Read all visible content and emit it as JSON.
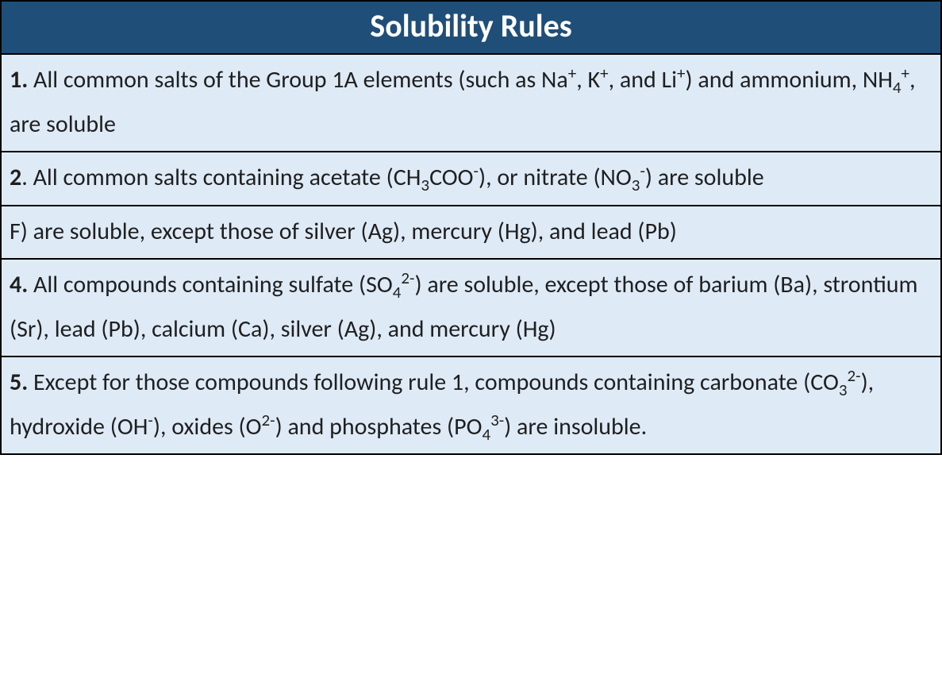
{
  "table": {
    "title": "Solubility Rules",
    "header_bg": "#1f4e79",
    "header_fg": "#ffffff",
    "row_bg": "#deebf7",
    "row_fg": "#1f1f1f",
    "border_color": "#000000",
    "title_fontsize": 40,
    "row_fontsize": 30,
    "rules": [
      {
        "num": "1.",
        "html": " All common salts of the Group 1A elements (such as Na<sup>+</sup>, K<sup>+</sup>, and Li<sup>+</sup>)  and ammonium, NH<sub>4</sub><sup>+</sup>, are soluble"
      },
      {
        "num": "2",
        "html": ". All common salts containing acetate (CH<sub>3</sub>COO<sup>-</sup>), or nitrate (NO<sub>3</sub><sup>-</sup>) are soluble"
      },
      {
        "num": "",
        "html": "F) are soluble, except those of silver (Ag), mercury (Hg), and lead (Pb)"
      },
      {
        "num": "4.",
        "html": " All compounds containing sulfate (SO<sub>4</sub><sup>2-</sup>) are soluble, except those of barium (Ba), strontium (Sr), lead (Pb), calcium (Ca), silver (Ag), and mercury (Hg)"
      },
      {
        "num": "5.",
        "html": " Except for those compounds following rule 1, compounds containing carbonate (CO<sub>3</sub><sup>2-</sup>), hydroxide (OH<sup>-</sup>), oxides (O<sup>2-</sup>) and phosphates (PO<sub>4</sub><sup>3-</sup>) are insoluble."
      }
    ]
  }
}
